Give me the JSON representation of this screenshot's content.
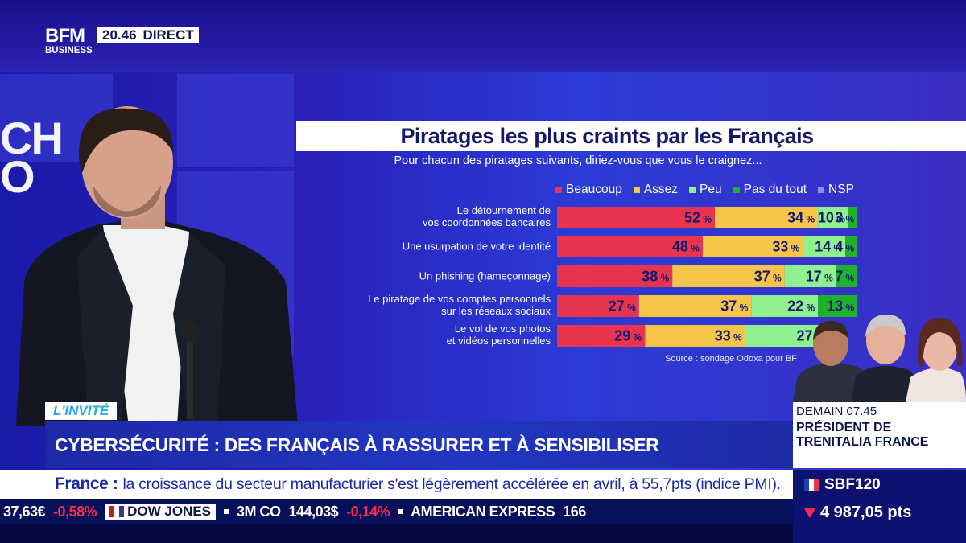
{
  "channel": {
    "logo_line1": "BFM",
    "logo_line2": "BUSINESS",
    "time": "20.46",
    "live_label": "DIRECT",
    "studio_word_line1": "CH",
    "studio_word_line2": "O"
  },
  "chart_data": {
    "type": "bar",
    "orientation": "horizontal-stacked-100",
    "title": "Piratages les plus craints par les Français",
    "subtitle": "Pour chacun des piratages suivants, diriez-vous que vous le craignez...",
    "categories": [
      "Le détournement de|vos coordonnées bancaires",
      "Une usurpation de votre identité",
      "Un phishing (hameçonnage)",
      "Le piratage de vos comptes personnels|sur les réseaux sociaux",
      "Le vol de vos photos|et vidéos personnelles"
    ],
    "series": [
      {
        "name": "Beaucoup",
        "color": "#e8344e",
        "values": [
          52,
          48,
          38,
          27,
          29
        ]
      },
      {
        "name": "Assez",
        "color": "#f7c54a",
        "values": [
          34,
          33,
          37,
          37,
          33
        ]
      },
      {
        "name": "Peu",
        "color": "#8ff08f",
        "values": [
          10,
          14,
          17,
          22,
          27
        ]
      },
      {
        "name": "Pas du tout",
        "color": "#1fb02e",
        "values": [
          3,
          4,
          7,
          13,
          null
        ]
      },
      {
        "name": "NSP",
        "color": "#7e95e6",
        "values": [
          null,
          null,
          null,
          null,
          null
        ]
      }
    ],
    "value_suffix": "%",
    "source": "Source : sondage Odoxa pour BF",
    "legend_position": "top"
  },
  "upcoming": {
    "time": "DEMAIN 07.45",
    "title": "PRÉSIDENT DE TRENITALIA FRANCE"
  },
  "lower_third": {
    "tag": "L'INVITÉ",
    "headline": "CYBERSÉCURITÉ : DES FRANÇAIS À RASSURER ET À SENSIBILISER"
  },
  "news": {
    "label": "France :",
    "text": "la croissance du secteur manufacturier s'est légèrement accélérée en avril, à 55,7pts (indice PMI)."
  },
  "index": {
    "name": "SBF120",
    "value": "4 987,05 pts",
    "flag_colors": [
      "#1e3fbf",
      "#ffffff",
      "#e8344e"
    ],
    "direction": "down"
  },
  "ticker": {
    "items": [
      {
        "name": "",
        "value": "37,63€",
        "change": "-0,58%"
      },
      {
        "name": "DOW JONES",
        "badge": true
      },
      {
        "name": "3M CO",
        "value": "144,03$",
        "change": "-0,14%"
      },
      {
        "name": "AMERICAN EXPRESS",
        "value": "166"
      }
    ]
  }
}
